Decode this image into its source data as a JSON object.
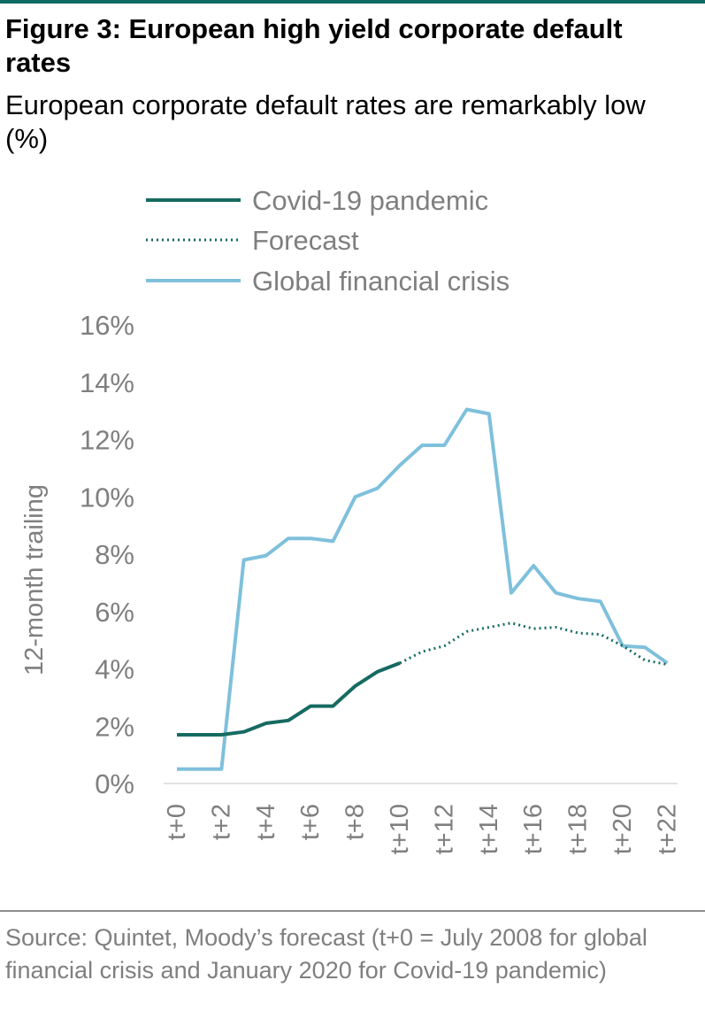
{
  "figure": {
    "title": "Figure 3: European high yield corporate default rates",
    "subtitle": "European corporate default rates are remarkably low (%)",
    "source": "Source: Quintet, Moody’s forecast (t+0 = July 2008 for global financial crisis and January 2020 for Covid-19 pandemic)"
  },
  "colors": {
    "accent": "#0f6b62",
    "covid": "#166a61",
    "gfc": "#7fc0dc",
    "axis_text": "#7f7f7f",
    "axis_line": "#d9d9d9",
    "rule": "#8c8c8c"
  },
  "chart_data": {
    "type": "line",
    "ylabel": "12-month trailing",
    "xlabel": "",
    "ylim": [
      0,
      16
    ],
    "grid": false,
    "legend_position": "top",
    "x": [
      "t+0",
      "t+1",
      "t+2",
      "t+3",
      "t+4",
      "t+5",
      "t+6",
      "t+7",
      "t+8",
      "t+9",
      "t+10",
      "t+11",
      "t+12",
      "t+13",
      "t+14",
      "t+15",
      "t+16",
      "t+17",
      "t+18",
      "t+19",
      "t+20",
      "t+21",
      "t+22"
    ],
    "x_tick_labels": [
      "t+0",
      "t+2",
      "t+4",
      "t+6",
      "t+8",
      "t+10",
      "t+12",
      "t+14",
      "t+16",
      "t+18",
      "t+20",
      "t+22"
    ],
    "y_tick_labels": [
      "0%",
      "2%",
      "4%",
      "6%",
      "8%",
      "10%",
      "12%",
      "14%",
      "16%"
    ],
    "series": [
      {
        "name": "Covid-19 pandemic",
        "style": "solid",
        "values": [
          1.7,
          1.7,
          1.7,
          1.8,
          2.1,
          2.2,
          2.7,
          2.7,
          3.4,
          3.9,
          4.2,
          null,
          null,
          null,
          null,
          null,
          null,
          null,
          null,
          null,
          null,
          null,
          null
        ]
      },
      {
        "name": "Forecast",
        "style": "dotted",
        "values": [
          null,
          null,
          null,
          null,
          null,
          null,
          null,
          null,
          null,
          null,
          4.2,
          4.6,
          4.8,
          5.3,
          5.45,
          5.6,
          5.4,
          5.45,
          5.25,
          5.2,
          4.8,
          4.3,
          4.15
        ]
      },
      {
        "name": "Global financial crisis",
        "style": "solid",
        "values": [
          0.5,
          0.5,
          0.5,
          7.8,
          7.95,
          8.55,
          8.55,
          8.45,
          10.0,
          10.3,
          11.1,
          11.8,
          11.8,
          13.05,
          12.9,
          6.65,
          7.6,
          6.65,
          6.45,
          6.35,
          4.8,
          4.75,
          4.2
        ]
      }
    ]
  }
}
